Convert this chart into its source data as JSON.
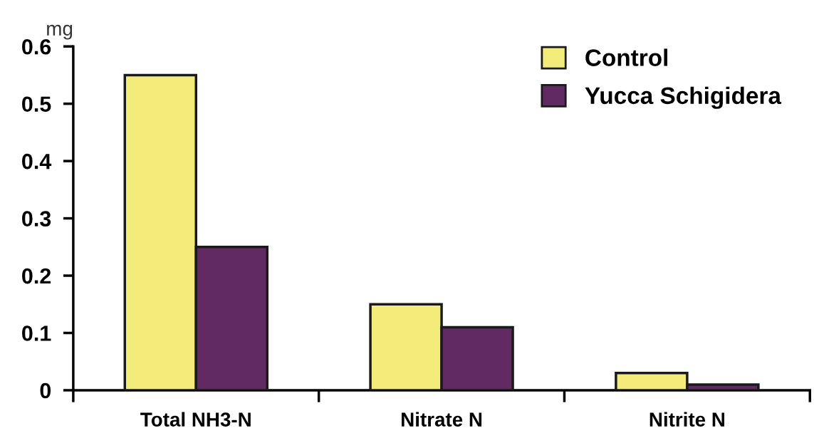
{
  "chart_data": {
    "type": "bar",
    "ylabel": "mg",
    "categories": [
      "Total NH3-N",
      "Nitrate N",
      "Nitrite N"
    ],
    "series": [
      {
        "name": "Control",
        "color": "#f3ec7a",
        "values": [
          0.55,
          0.15,
          0.03
        ]
      },
      {
        "name": "Yucca Schigidera",
        "color": "#622a63",
        "values": [
          0.25,
          0.11,
          0.01
        ]
      }
    ],
    "ylim": [
      0,
      0.6
    ],
    "yticks": [
      0,
      0.1,
      0.2,
      0.3,
      0.4,
      0.5,
      0.6
    ],
    "grid": false,
    "legend": "top right"
  }
}
